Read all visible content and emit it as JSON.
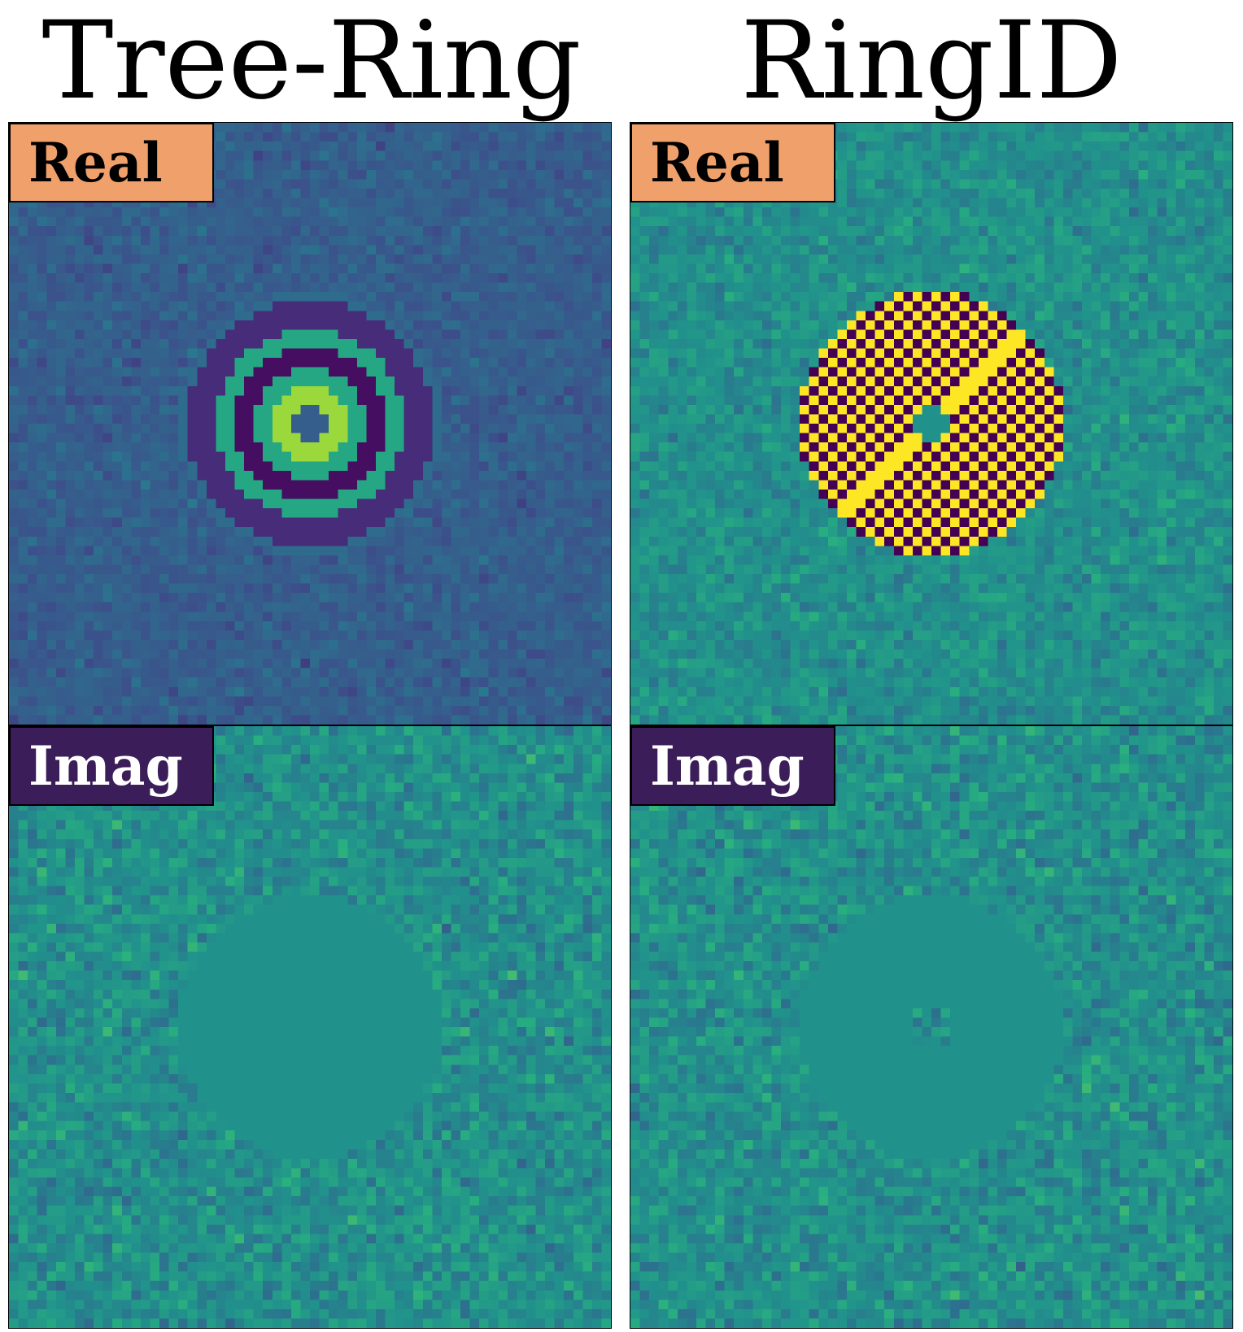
{
  "columns": [
    {
      "title": "Tree-Ring",
      "pattern": "tree-ring"
    },
    {
      "title": "RingID",
      "pattern": "ringid"
    }
  ],
  "rows": [
    {
      "label": "Real",
      "part": "real",
      "color": "#f0a06a",
      "text_color": "#000000"
    },
    {
      "label": "Imag",
      "part": "imag",
      "color": "#3b1d59",
      "text_color": "#ffffff"
    }
  ],
  "colormap": "viridis"
}
